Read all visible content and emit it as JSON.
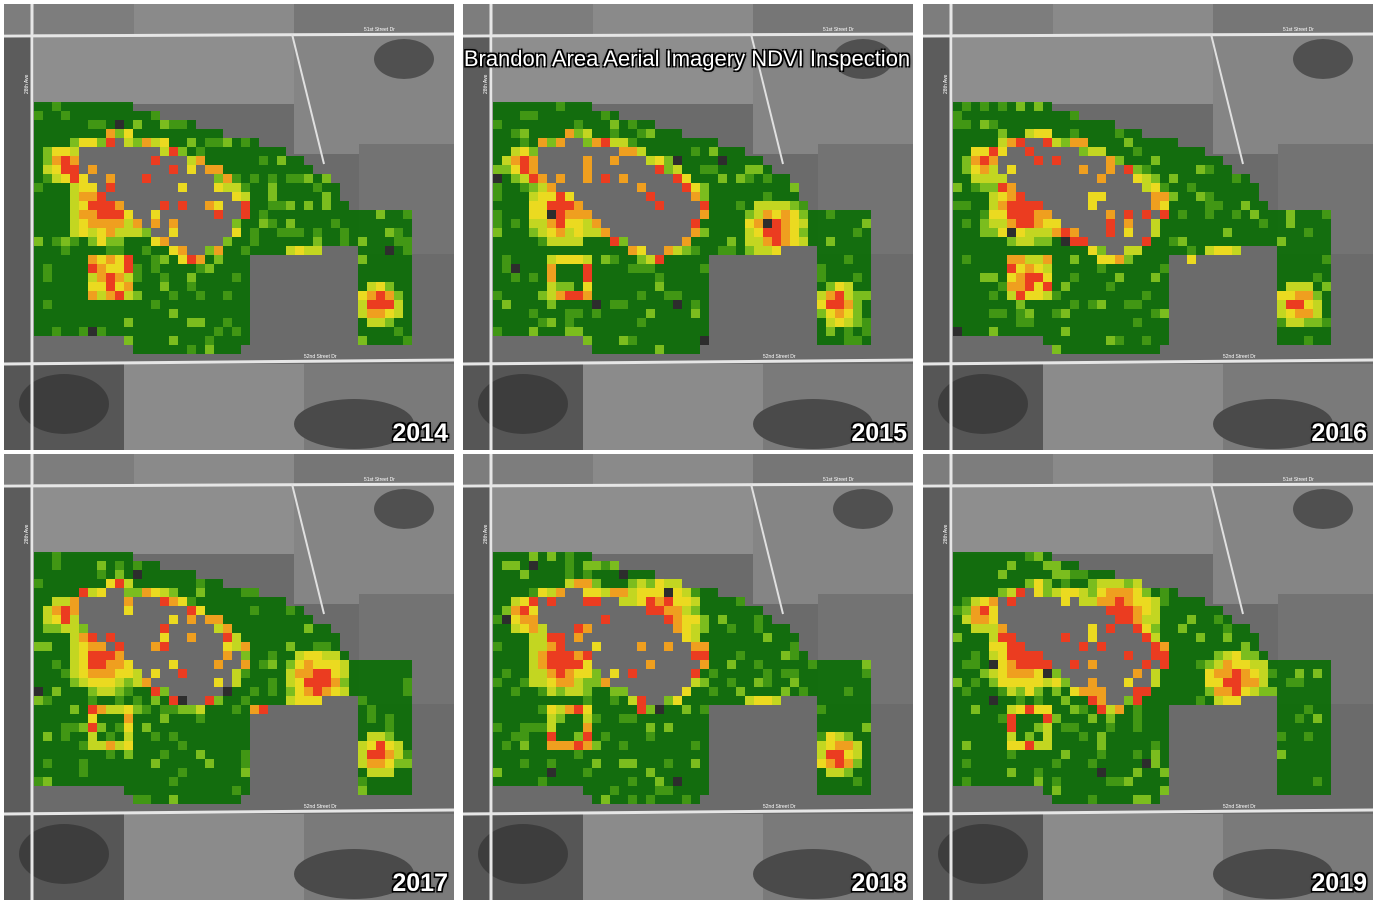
{
  "title": "Brandon Area Aerial Imagery NDVI Inspection",
  "road_labels": {
    "north": "51st Street Dr",
    "south": "52nd Street Dr",
    "west": "28th Ave"
  },
  "colors": {
    "ndvi_high": "#0f6e0a",
    "ndvi_mid_high": "#3f9a10",
    "ndvi_mid": "#7cc21a",
    "ndvi_mid_low": "#c8dc1e",
    "ndvi_low_mid": "#f2e01c",
    "ndvi_low": "#f7a21b",
    "ndvi_very_low": "#f23a1c",
    "ndvi_none": "#2a2a2a"
  },
  "panels": [
    {
      "year": "2014",
      "column": 1,
      "row": 1,
      "stress_zones": [
        "west-draw",
        "south-west-loop",
        "scattered-east"
      ]
    },
    {
      "year": "2015",
      "column": 2,
      "row": 1,
      "stress_zones": [
        "west-draw",
        "east-center",
        "scattered-east"
      ]
    },
    {
      "year": "2016",
      "column": 3,
      "row": 1,
      "stress_zones": [
        "west-draw",
        "south-west-loop",
        "scattered-east"
      ]
    },
    {
      "year": "2017",
      "column": 1,
      "row": 2,
      "stress_zones": [
        "west-draw",
        "east-center",
        "scattered-east"
      ]
    },
    {
      "year": "2018",
      "column": 2,
      "row": 2,
      "stress_zones": [
        "north-center",
        "west-draw",
        "scattered-east"
      ]
    },
    {
      "year": "2019",
      "column": 3,
      "row": 2,
      "stress_zones": [
        "west-draw",
        "north-center",
        "east-center"
      ]
    }
  ]
}
